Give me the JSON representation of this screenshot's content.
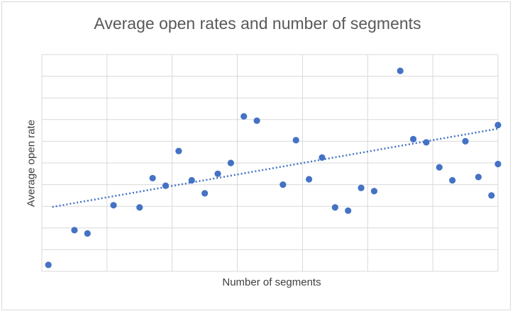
{
  "chart_data": {
    "type": "scatter",
    "title": "Average open rates and number of segments",
    "xlabel": "Number of segments",
    "ylabel": "Average open rate",
    "x_tick_labels": [],
    "y_tick_labels": [],
    "grid": true,
    "legend": "none",
    "xlim": [
      0,
      35
    ],
    "ylim": [
      0,
      10
    ],
    "points": [
      {
        "x": 0.5,
        "y": 0.3
      },
      {
        "x": 2.5,
        "y": 1.9
      },
      {
        "x": 3.5,
        "y": 1.75
      },
      {
        "x": 5.5,
        "y": 3.05
      },
      {
        "x": 7.5,
        "y": 2.95
      },
      {
        "x": 8.5,
        "y": 4.3
      },
      {
        "x": 9.5,
        "y": 3.95
      },
      {
        "x": 10.5,
        "y": 5.55
      },
      {
        "x": 11.5,
        "y": 4.2
      },
      {
        "x": 12.5,
        "y": 3.6
      },
      {
        "x": 13.5,
        "y": 4.5
      },
      {
        "x": 14.5,
        "y": 5.0
      },
      {
        "x": 15.5,
        "y": 7.15
      },
      {
        "x": 16.5,
        "y": 6.95
      },
      {
        "x": 18.5,
        "y": 4.0
      },
      {
        "x": 19.5,
        "y": 6.05
      },
      {
        "x": 20.5,
        "y": 4.25
      },
      {
        "x": 21.5,
        "y": 5.25
      },
      {
        "x": 22.5,
        "y": 2.95
      },
      {
        "x": 23.5,
        "y": 2.8
      },
      {
        "x": 24.5,
        "y": 3.85
      },
      {
        "x": 25.5,
        "y": 3.7
      },
      {
        "x": 27.5,
        "y": 9.25
      },
      {
        "x": 28.5,
        "y": 6.1
      },
      {
        "x": 29.5,
        "y": 5.95
      },
      {
        "x": 30.5,
        "y": 4.8
      },
      {
        "x": 31.5,
        "y": 4.2
      },
      {
        "x": 32.5,
        "y": 6.0
      },
      {
        "x": 33.5,
        "y": 4.35
      },
      {
        "x": 34.5,
        "y": 3.5
      },
      {
        "x": 35.0,
        "y": 6.75
      },
      {
        "x": 35.0,
        "y": 4.95
      }
    ],
    "trendline": {
      "type": "linear",
      "from": [
        0.8,
        2.97
      ],
      "to": [
        35.0,
        6.58
      ]
    },
    "colors": {
      "marker": "#4472c4",
      "trendline": "#4472c4",
      "gridline": "#d9d9d9"
    }
  }
}
